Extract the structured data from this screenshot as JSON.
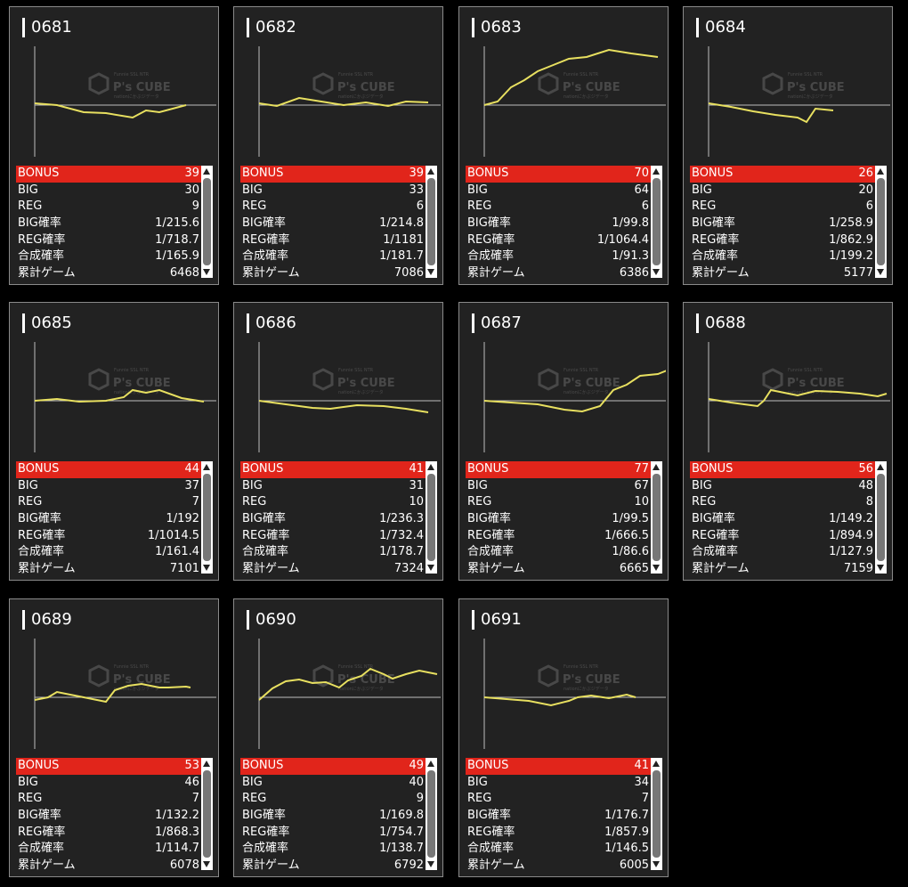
{
  "labels": {
    "bonus": "BONUS",
    "big": "BIG",
    "reg": "REG",
    "big_rate": "BIG確率",
    "reg_rate": "REG確率",
    "total_rate": "合成確率",
    "games": "累計ゲーム"
  },
  "watermark": {
    "logo": "P's CUBE",
    "top_line": "Funnie SSL NTR",
    "bottom_line": "nationにかぶジデータ"
  },
  "colors": {
    "background": "#000000",
    "card": "#222222",
    "bonus_bar": "#e1251b",
    "graph_line": "#e8e060"
  },
  "machines": [
    {
      "id": "0681",
      "bonus": "39",
      "big": "30",
      "reg": "9",
      "big_rate": "1/215.6",
      "reg_rate": "1/718.7",
      "total_rate": "1/165.9",
      "games": "6468"
    },
    {
      "id": "0682",
      "bonus": "39",
      "big": "33",
      "reg": "6",
      "big_rate": "1/214.8",
      "reg_rate": "1/1181",
      "total_rate": "1/181.7",
      "games": "7086"
    },
    {
      "id": "0683",
      "bonus": "70",
      "big": "64",
      "reg": "6",
      "big_rate": "1/99.8",
      "reg_rate": "1/1064.4",
      "total_rate": "1/91.3",
      "games": "6386"
    },
    {
      "id": "0684",
      "bonus": "26",
      "big": "20",
      "reg": "6",
      "big_rate": "1/258.9",
      "reg_rate": "1/862.9",
      "total_rate": "1/199.2",
      "games": "5177"
    },
    {
      "id": "0685",
      "bonus": "44",
      "big": "37",
      "reg": "7",
      "big_rate": "1/192",
      "reg_rate": "1/1014.5",
      "total_rate": "1/161.4",
      "games": "7101"
    },
    {
      "id": "0686",
      "bonus": "41",
      "big": "31",
      "reg": "10",
      "big_rate": "1/236.3",
      "reg_rate": "1/732.4",
      "total_rate": "1/178.7",
      "games": "7324"
    },
    {
      "id": "0687",
      "bonus": "77",
      "big": "67",
      "reg": "10",
      "big_rate": "1/99.5",
      "reg_rate": "1/666.5",
      "total_rate": "1/86.6",
      "games": "6665"
    },
    {
      "id": "0688",
      "bonus": "56",
      "big": "48",
      "reg": "8",
      "big_rate": "1/149.2",
      "reg_rate": "1/894.9",
      "total_rate": "1/127.9",
      "games": "7159"
    },
    {
      "id": "0689",
      "bonus": "53",
      "big": "46",
      "reg": "7",
      "big_rate": "1/132.2",
      "reg_rate": "1/868.3",
      "total_rate": "1/114.7",
      "games": "6078"
    },
    {
      "id": "0690",
      "bonus": "49",
      "big": "40",
      "reg": "9",
      "big_rate": "1/169.8",
      "reg_rate": "1/754.7",
      "total_rate": "1/138.7",
      "games": "6792"
    },
    {
      "id": "0691",
      "bonus": "41",
      "big": "34",
      "reg": "7",
      "big_rate": "1/176.7",
      "reg_rate": "1/857.9",
      "total_rate": "1/146.5",
      "games": "6005"
    }
  ]
}
